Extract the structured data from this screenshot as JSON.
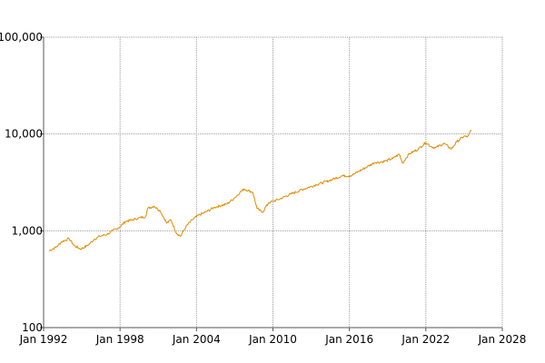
{
  "chart_data": {
    "type": "line",
    "title": "",
    "xlabel": "",
    "ylabel": "",
    "y_scale": "log",
    "ylim": [
      100,
      100000
    ],
    "xlim": [
      "1992-01-01",
      "2028-01-01"
    ],
    "grid": true,
    "legend": "none",
    "x_ticks": [
      "Jan 1992",
      "Jan 1998",
      "Jan 2004",
      "Jan 2010",
      "Jan 2016",
      "Jan 2022",
      "Jan 2028"
    ],
    "y_ticks": [
      "100",
      "1,000",
      "10,000",
      "100,000"
    ],
    "y_tick_values": [
      100,
      1000,
      10000,
      100000
    ],
    "colors": {
      "series": "#e08a00",
      "grid": "#999999",
      "axis": "#555555"
    },
    "series": [
      {
        "x": [
          "1992-06-01",
          "1993-01-01",
          "1993-06-01",
          "1994-01-01",
          "1994-06-01",
          "1994-12-01",
          "1995-06-01",
          "1996-01-01",
          "1996-06-01",
          "1997-01-01",
          "1997-06-01",
          "1998-01-01",
          "1998-06-01",
          "1999-01-01",
          "1999-06-01",
          "2000-01-01",
          "2000-03-01",
          "2000-09-01",
          "2001-03-01",
          "2001-09-01",
          "2002-01-01",
          "2002-06-01",
          "2002-10-01",
          "2003-03-01",
          "2003-09-01",
          "2004-03-01",
          "2004-09-01",
          "2005-06-01",
          "2006-06-01",
          "2007-01-01",
          "2007-06-01",
          "2007-10-01",
          "2008-06-01",
          "2008-10-01",
          "2009-03-01",
          "2009-09-01",
          "2010-06-01",
          "2011-06-01",
          "2012-06-01",
          "2013-06-01",
          "2014-06-01",
          "2015-06-01",
          "2016-02-01",
          "2016-06-01",
          "2017-06-01",
          "2018-01-01",
          "2018-06-01",
          "2018-12-01",
          "2019-06-01",
          "2019-12-01",
          "2020-03-01",
          "2020-09-01",
          "2021-06-01",
          "2022-01-01",
          "2022-06-01",
          "2022-10-01",
          "2023-06-01",
          "2024-01-01",
          "2024-06-01",
          "2025-01-01",
          "2025-04-01",
          "2025-08-01"
        ],
        "y": [
          620,
          680,
          770,
          830,
          700,
          650,
          700,
          820,
          880,
          920,
          1000,
          1100,
          1250,
          1300,
          1350,
          1400,
          1700,
          1800,
          1600,
          1200,
          1300,
          950,
          880,
          1100,
          1300,
          1450,
          1550,
          1750,
          1900,
          2200,
          2500,
          2700,
          2500,
          1700,
          1550,
          1950,
          2100,
          2400,
          2700,
          3000,
          3300,
          3700,
          3700,
          3900,
          4600,
          5100,
          5100,
          5300,
          5600,
          6200,
          5000,
          6200,
          7000,
          8200,
          7400,
          7200,
          8000,
          7000,
          8300,
          9500,
          9300,
          11000
        ]
      }
    ]
  }
}
